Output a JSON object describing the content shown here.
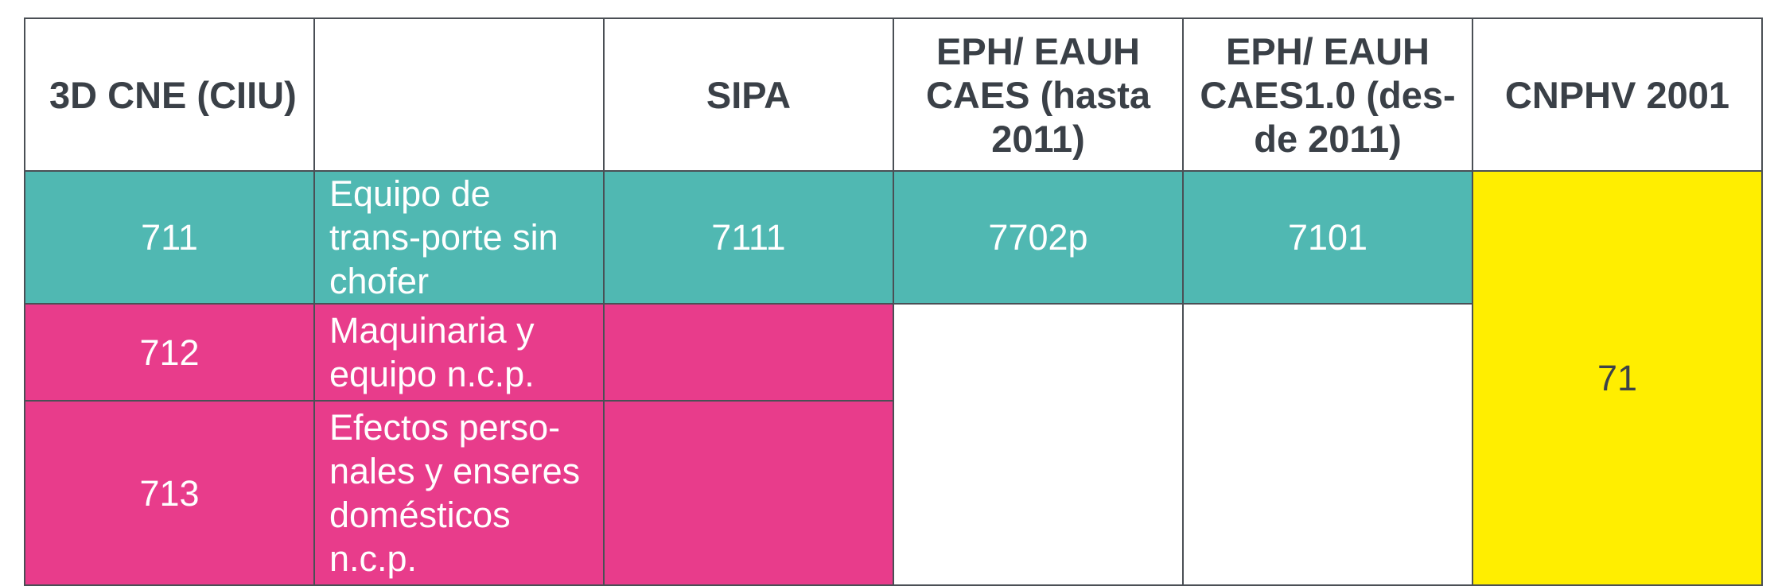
{
  "table": {
    "headers": [
      "3D CNE (CIIU)",
      "",
      "SIPA",
      "EPH/ EAUH CAES (hasta 2011)",
      "EPH/ EAUH CAES1.0 (des-de 2011)",
      "CNPHV 2001"
    ],
    "rows": [
      {
        "code": "711",
        "description": "Equipo de trans-porte sin chofer",
        "sipa": "7111",
        "eph_caes": "7702p",
        "eph_caes10": "7101"
      },
      {
        "code": "712",
        "description": "Maquinaria y equipo n.c.p.",
        "sipa": "",
        "eph_caes": "",
        "eph_caes10": ""
      },
      {
        "code": "713",
        "description": "Efectos perso-nales y enseres domésticos n.c.p.",
        "sipa": ""
      }
    ],
    "cnphv_merged": "71",
    "colors": {
      "teal": "#50b8b2",
      "pink": "#e83c8b",
      "yellow": "#ffee00",
      "border": "#4a4f55",
      "header_text": "#3a4047"
    }
  }
}
